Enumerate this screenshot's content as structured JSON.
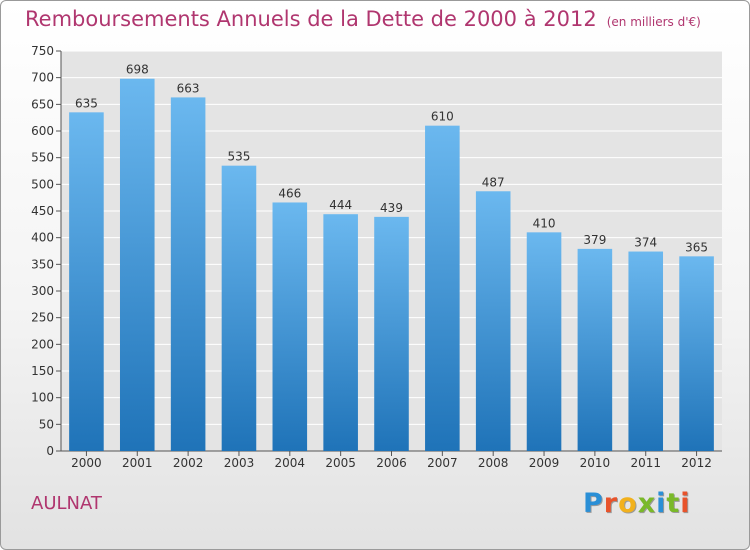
{
  "title": "Remboursements Annuels de la Dette de 2000 à 2012",
  "subtitle": "(en milliers d'€)",
  "commune": "AULNAT",
  "logo": {
    "letters": [
      "P",
      "r",
      "o",
      "x",
      "i",
      "t",
      "i"
    ],
    "colors": [
      "#2a8fd6",
      "#e8532b",
      "#f2b11d",
      "#7ab929",
      "#2a8fd6",
      "#7ab929",
      "#e8532b"
    ]
  },
  "colors": {
    "bar_top": "#6bb8ef",
    "bar_bottom": "#1f73b8",
    "title": "#b0366f"
  },
  "chart_data": {
    "type": "bar",
    "title": "Remboursements Annuels de la Dette de 2000 à 2012",
    "subtitle": "(en milliers d'€)",
    "xlabel": "",
    "ylabel": "",
    "categories": [
      "2000",
      "2001",
      "2002",
      "2003",
      "2004",
      "2005",
      "2006",
      "2007",
      "2008",
      "2009",
      "2010",
      "2011",
      "2012"
    ],
    "values": [
      635,
      698,
      663,
      535,
      466,
      444,
      439,
      610,
      487,
      410,
      379,
      374,
      365
    ],
    "ylim": [
      0,
      750
    ],
    "yticks": [
      0,
      50,
      100,
      150,
      200,
      250,
      300,
      350,
      400,
      450,
      500,
      550,
      600,
      650,
      700,
      750
    ],
    "grid": true
  }
}
